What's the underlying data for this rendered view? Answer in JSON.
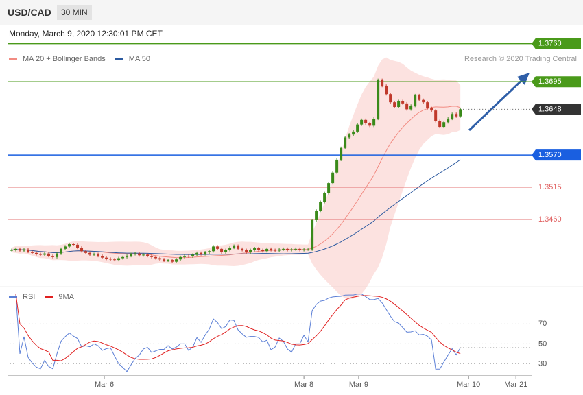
{
  "header": {
    "symbol": "USD/CAD",
    "interval": "30 MIN",
    "datetime": "Monday, March 9, 2020 12:30:01 PM CET"
  },
  "chart_data": [
    {
      "type": "candlestick",
      "legend": [
        {
          "name": "MA 20 + Bollinger Bands",
          "color": "#f28b82"
        },
        {
          "name": "MA 50",
          "color": "#2c5aa0"
        }
      ],
      "credit": "Research © 2020 Trading Central",
      "up_color": "#3a8a1a",
      "down_color": "#c0392b",
      "close": [
        1.3408,
        1.341,
        1.3407,
        1.3409,
        1.3405,
        1.3403,
        1.3401,
        1.34,
        1.3402,
        1.3398,
        1.3396,
        1.3402,
        1.341,
        1.3414,
        1.3418,
        1.3417,
        1.3412,
        1.3406,
        1.3403,
        1.34,
        1.3401,
        1.3398,
        1.3395,
        1.3393,
        1.3392,
        1.3391,
        1.3394,
        1.3396,
        1.3398,
        1.3401,
        1.3402,
        1.3399,
        1.34,
        1.3398,
        1.3396,
        1.3394,
        1.3392,
        1.339,
        1.3391,
        1.3388,
        1.3392,
        1.3396,
        1.3398,
        1.3397,
        1.34,
        1.3403,
        1.3401,
        1.3404,
        1.3406,
        1.3414,
        1.341,
        1.3404,
        1.3408,
        1.3412,
        1.3415,
        1.341,
        1.3408,
        1.3404,
        1.3408,
        1.3411,
        1.3408,
        1.3406,
        1.341,
        1.3408,
        1.3407,
        1.3409,
        1.341,
        1.3408,
        1.3409,
        1.341,
        1.3408,
        1.3409,
        1.3409,
        1.3459,
        1.3475,
        1.349,
        1.3505,
        1.3522,
        1.354,
        1.3562,
        1.3582,
        1.36,
        1.3605,
        1.361,
        1.3622,
        1.363,
        1.3624,
        1.362,
        1.3632,
        1.3698,
        1.3688,
        1.3674,
        1.366,
        1.3652,
        1.3662,
        1.3658,
        1.3648,
        1.3654,
        1.3672,
        1.3664,
        1.366,
        1.365,
        1.3646,
        1.3628,
        1.3618,
        1.3626,
        1.3632,
        1.364,
        1.3636,
        1.3648
      ],
      "levels": [
        {
          "value": 1.376,
          "label": "1.3760",
          "color": "#4a9a1a",
          "style": "box"
        },
        {
          "value": 1.3695,
          "label": "1.3695",
          "color": "#4a9a1a",
          "style": "box"
        },
        {
          "value": 1.3648,
          "label": "1.3648",
          "color": "#333333",
          "style": "current"
        },
        {
          "value": 1.357,
          "label": "1.3570",
          "color": "#1a5fe0",
          "style": "box"
        },
        {
          "value": 1.3515,
          "label": "1.3515",
          "color": "#e06060",
          "style": "text"
        },
        {
          "value": 1.346,
          "label": "1.3460",
          "color": "#e06060",
          "style": "text"
        }
      ],
      "xlim": [
        -1,
        126.3
      ],
      "ylim": [
        1.3349,
        1.37643
      ],
      "xticks": [
        {
          "value": 22.5,
          "label": "Mar 6"
        },
        {
          "value": 71,
          "label": "Mar 8"
        },
        {
          "value": 84.3,
          "label": "Mar 9"
        },
        {
          "value": 111,
          "label": "Mar 10"
        },
        {
          "value": 122.5,
          "label": "Mar 21"
        }
      ]
    },
    {
      "type": "rsi",
      "legend": [
        {
          "name": "RSI",
          "color": "#5b7fd6"
        },
        {
          "name": "9MA",
          "color": "#e02020"
        }
      ],
      "period": 14,
      "ma_period": 9,
      "ylim": [
        20,
        106
      ],
      "yticks": [
        30,
        50,
        70
      ]
    }
  ]
}
